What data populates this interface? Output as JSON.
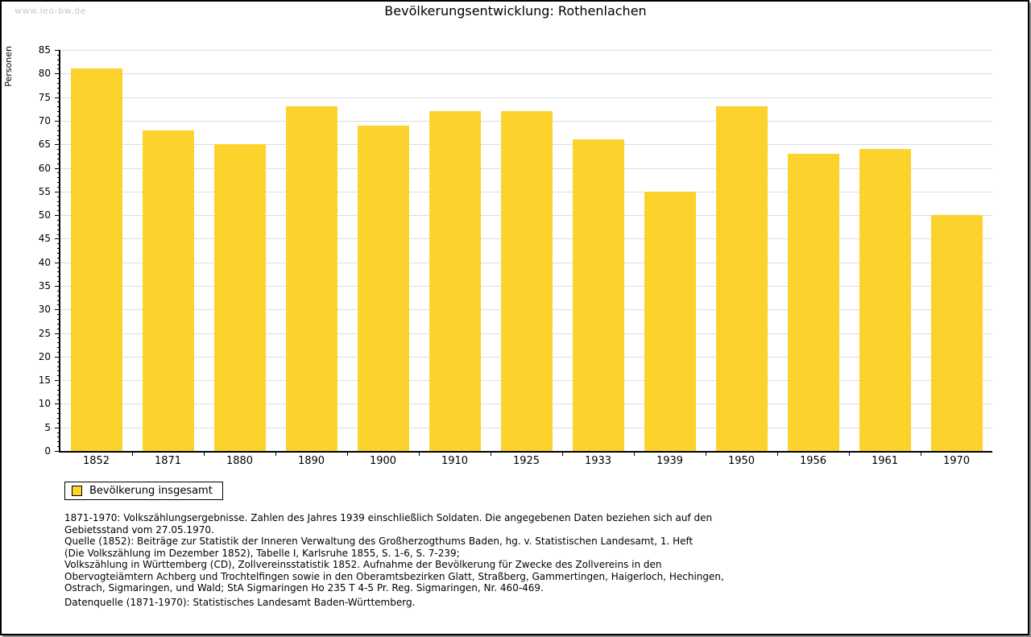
{
  "watermark": "www.leo-bw.de",
  "header": {
    "title": "Bevölkerungsentwicklung: Rothenlachen"
  },
  "chart_data": {
    "type": "bar",
    "title": "Bevölkerungsentwicklung: Rothenlachen",
    "xlabel": "",
    "ylabel": "Personen",
    "categories": [
      "1852",
      "1871",
      "1880",
      "1890",
      "1900",
      "1910",
      "1925",
      "1933",
      "1939",
      "1950",
      "1956",
      "1961",
      "1970"
    ],
    "series": [
      {
        "name": "Bevölkerung insgesamt",
        "values": [
          81,
          68,
          65,
          73,
          69,
          72,
          72,
          66,
          55,
          73,
          63,
          64,
          50
        ]
      }
    ],
    "ylim": [
      0,
      85
    ],
    "ytick_step": 5,
    "yminor_step": 1,
    "grid": true,
    "legend_position": "bottom-left",
    "colors": {
      "bar": "#FCD22D",
      "grid": "#DDDDDD",
      "axis": "#000000",
      "text": "#000000"
    }
  },
  "legend": {
    "label": "Bevölkerung insgesamt",
    "swatch_color": "#FCD22D"
  },
  "footnotes": {
    "lines": [
      "1871-1970: Volkszählungsergebnisse. Zahlen des Jahres 1939 einschließlich Soldaten. Die angegebenen Daten beziehen sich auf den",
      "Gebietsstand vom 27.05.1970.",
      "Quelle (1852): Beiträge zur Statistik der Inneren Verwaltung des Großherzogthums Baden, hg. v. Statistischen Landesamt, 1. Heft",
      "(Die Volkszählung im Dezember 1852), Tabelle I, Karlsruhe 1855, S. 1-6, S. 7-239;",
      "Volkszählung in Württemberg (CD), Zollvereinsstatistik 1852. Aufnahme der Bevölkerung für Zwecke des Zollvereins in den",
      "Obervogteiämtern Achberg und Trochtelfingen sowie in den Oberamtsbezirken Glatt, Straßberg, Gammertingen, Haigerloch, Hechingen,",
      "Ostrach, Sigmaringen, und Wald; StA Sigmaringen Ho 235 T 4-5 Pr. Reg. Sigmaringen, Nr. 460-469."
    ],
    "datasource": "Datenquelle (1871-1970): Statistisches Landesamt Baden-Württemberg."
  }
}
